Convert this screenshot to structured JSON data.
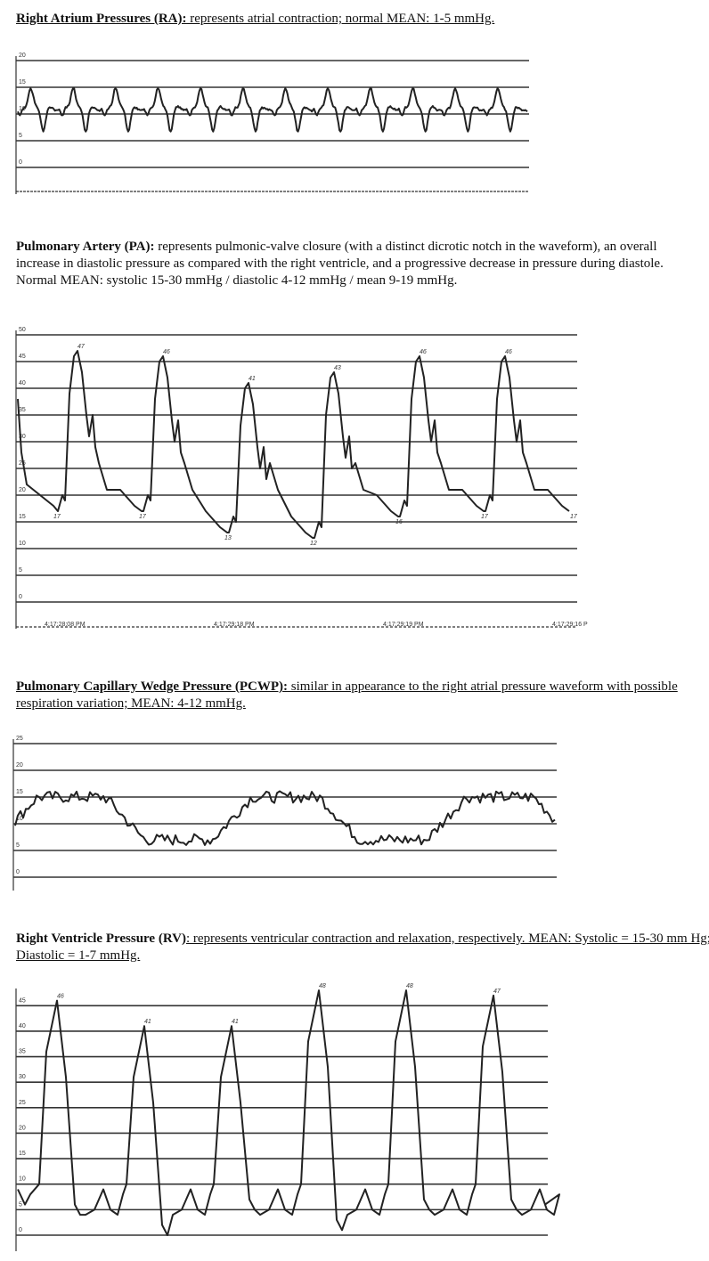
{
  "sections": [
    {
      "id": "ra",
      "heading": "Right Atrium Pressures (RA):",
      "description": " represents atrial contraction; normal MEAN: 1-5 mmHg.",
      "chart_data": {
        "type": "line",
        "y_ticks": [
          "20",
          "15",
          "10",
          "5",
          "0"
        ],
        "ylim": [
          0,
          20
        ],
        "cycles": 12,
        "peak": 15,
        "trough": 7,
        "baseline": 11
      }
    },
    {
      "id": "pa",
      "heading": "Pulmonary Artery (PA):",
      "description": " represents pulmonic-valve closure (with a distinct dicrotic notch in the waveform), an overall increase in diastolic pressure as compared with the right ventricle, and a progressive decrease in pressure during diastole. Normal MEAN: systolic 15-30 mmHg / diastolic 4-12 mmHg / mean 9-19 mmHg.",
      "chart_data": {
        "type": "line",
        "y_ticks": [
          "50",
          "45",
          "40",
          "35",
          "30",
          "25",
          "20",
          "15",
          "10",
          "5",
          "0"
        ],
        "ylim": [
          0,
          50
        ],
        "systolic_labels": [
          "47",
          "46",
          "41",
          "43",
          "46",
          "46"
        ],
        "diastolic_labels": [
          "17",
          "17",
          "13",
          "12",
          "16",
          "17",
          "17"
        ],
        "time_labels": [
          "4:17:28:08 PM",
          "4:17:29:18 PM",
          "4:17:29:19 PM",
          "4:17:29:16 P"
        ]
      }
    },
    {
      "id": "pcwp",
      "heading": "Pulmonary Capillary Wedge Pressure (PCWP):",
      "description": " similar in appearance to the right atrial pressure waveform with possible respiration variation; MEAN: 4-12 mmHg.",
      "chart_data": {
        "type": "line",
        "y_ticks": [
          "25",
          "20",
          "15",
          "10",
          "5",
          "0"
        ],
        "ylim": [
          0,
          25
        ],
        "high": 15,
        "low": 7
      }
    },
    {
      "id": "rv",
      "heading": "Right Ventricle Pressure (RV)",
      "description": ": represents ventricular contraction and relaxation, respectively. MEAN: Systolic = 15-30 mm Hg; Diastolic = 1-7 mmHg.",
      "chart_data": {
        "type": "line",
        "y_ticks": [
          "45",
          "40",
          "35",
          "30",
          "25",
          "20",
          "15",
          "10",
          "5",
          "0"
        ],
        "ylim": [
          0,
          47
        ],
        "systolic_labels": [
          "46",
          "41",
          "41",
          "48",
          "48",
          "47"
        ],
        "diastolic_values": [
          6,
          4,
          0,
          5,
          1,
          5,
          5
        ]
      }
    }
  ]
}
